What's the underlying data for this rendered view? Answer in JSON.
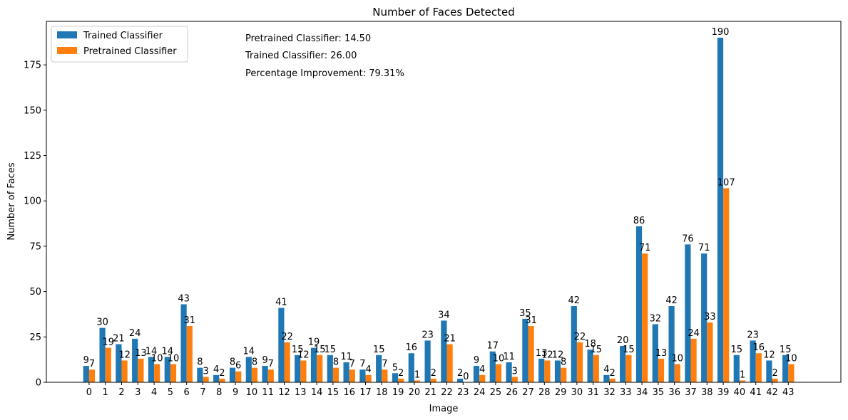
{
  "chart_data": {
    "type": "bar",
    "title": "Number of Faces Detected",
    "xlabel": "Image",
    "ylabel": "Number of Faces",
    "ylim": [
      0,
      199
    ],
    "yticks": [
      0,
      25,
      50,
      75,
      100,
      125,
      150,
      175
    ],
    "grid": false,
    "legend_position": "top-left",
    "categories": [
      "0",
      "1",
      "2",
      "3",
      "4",
      "5",
      "6",
      "7",
      "8",
      "9",
      "10",
      "11",
      "12",
      "13",
      "14",
      "15",
      "16",
      "17",
      "18",
      "19",
      "20",
      "21",
      "22",
      "23",
      "24",
      "25",
      "26",
      "27",
      "28",
      "29",
      "30",
      "31",
      "32",
      "33",
      "34",
      "35",
      "36",
      "37",
      "38",
      "39",
      "40",
      "41",
      "42",
      "43"
    ],
    "series": [
      {
        "name": "Trained Classifier",
        "color": "#1f77b4",
        "values": [
          9,
          30,
          21,
          24,
          14,
          14,
          43,
          8,
          4,
          8,
          14,
          9,
          41,
          15,
          19,
          15,
          11,
          7,
          15,
          5,
          16,
          23,
          34,
          2,
          9,
          17,
          11,
          35,
          13,
          12,
          42,
          18,
          4,
          20,
          86,
          32,
          42,
          76,
          71,
          190,
          15,
          23,
          12,
          15
        ]
      },
      {
        "name": "Pretrained Classifier",
        "color": "#ff7f0e",
        "values": [
          7,
          19,
          12,
          13,
          10,
          10,
          31,
          3,
          2,
          6,
          8,
          7,
          22,
          12,
          15,
          8,
          7,
          4,
          7,
          2,
          1,
          2,
          21,
          0,
          4,
          10,
          3,
          31,
          12,
          8,
          22,
          15,
          2,
          15,
          71,
          13,
          10,
          24,
          33,
          107,
          1,
          16,
          2,
          10
        ]
      }
    ],
    "annotations": [
      "Pretrained Classifier: 14.50",
      "Trained Classifier: 26.00",
      "Percentage Improvement: 79.31%"
    ]
  }
}
